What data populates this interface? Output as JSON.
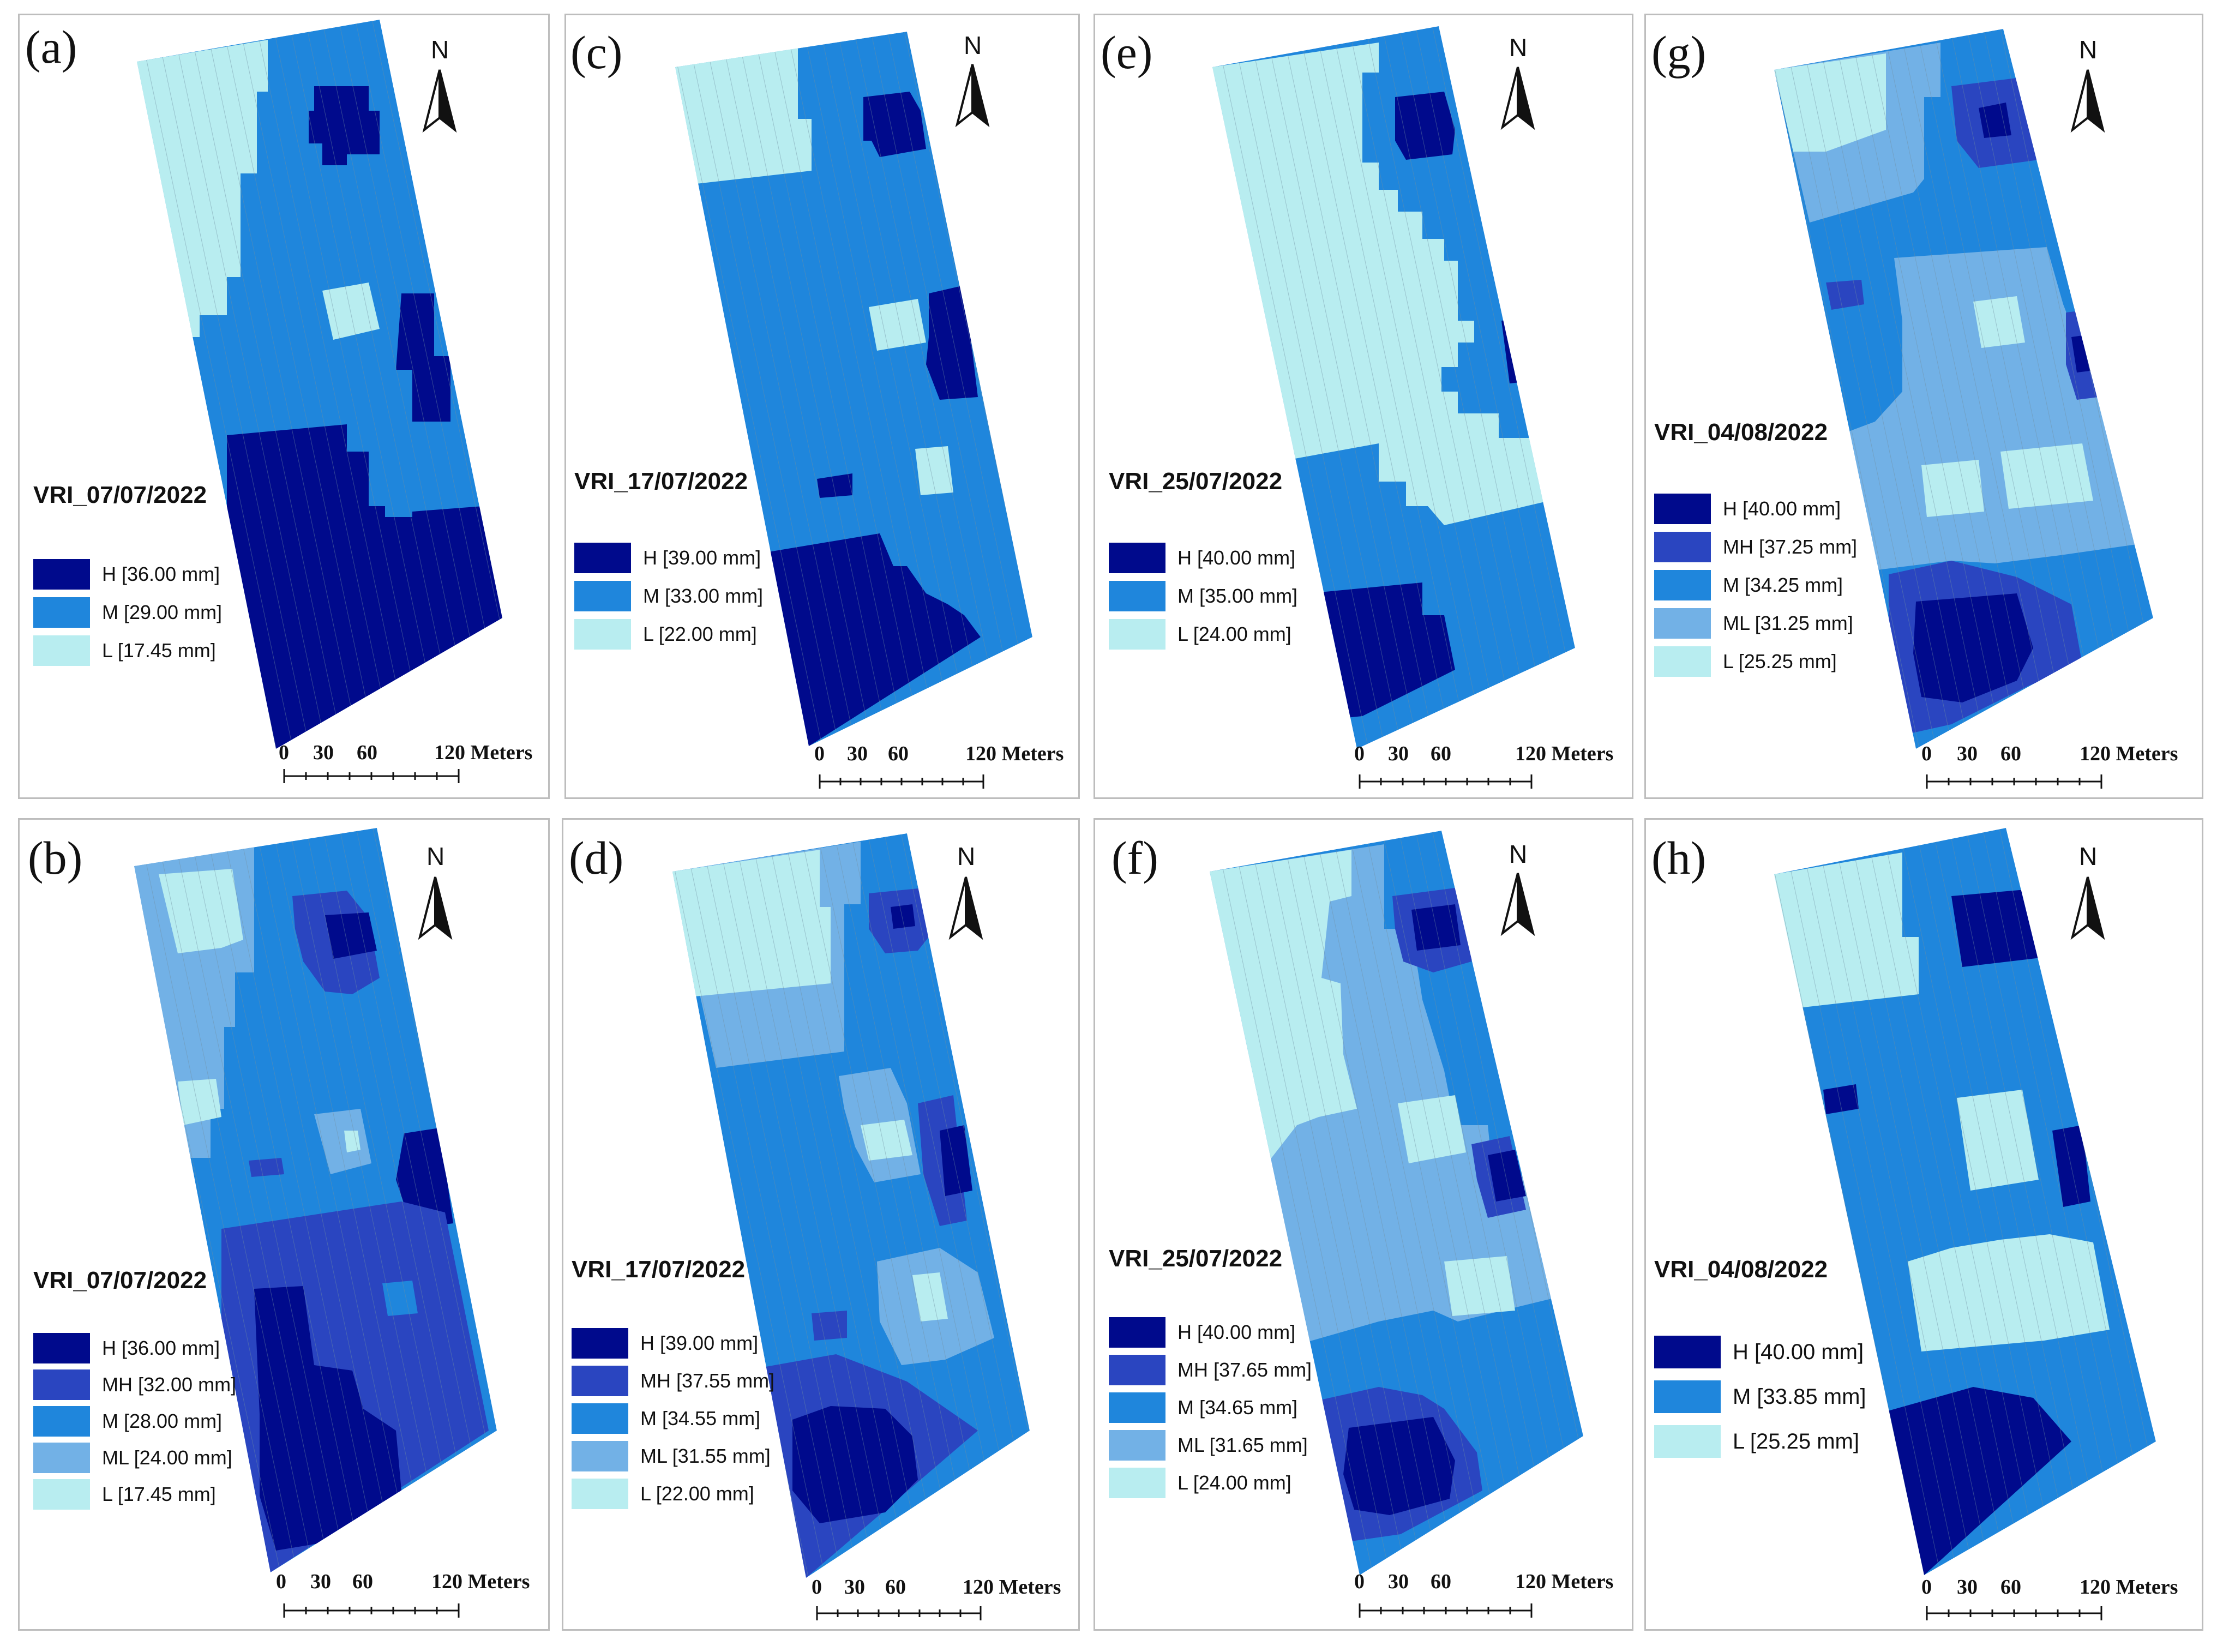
{
  "figure": {
    "north_symbol": "N",
    "scale_labels": [
      "0",
      "30",
      "60",
      "120 Meters"
    ],
    "panels": [
      {
        "id": "a",
        "label": "(a)",
        "title": "VRI_07/07/2022",
        "legend": [
          "H [36.00 mm]",
          "M [29.00 mm]",
          "L [17.45 mm]"
        ],
        "legend_colors": [
          "#000a8c",
          "#1f86dc",
          "#b8edf0"
        ]
      },
      {
        "id": "b",
        "label": "(b)",
        "title": "VRI_07/07/2022",
        "legend": [
          "H [36.00 mm]",
          "MH [32.00 mm]",
          "M [28.00 mm]",
          "ML [24.00 mm]",
          "L [17.45 mm]"
        ],
        "legend_colors": [
          "#000a8c",
          "#2a45c0",
          "#1f86dc",
          "#72b1e6",
          "#b8edf0"
        ]
      },
      {
        "id": "c",
        "label": "(c)",
        "title": "VRI_17/07/2022",
        "legend": [
          "H [39.00 mm]",
          "M [33.00 mm]",
          "L [22.00 mm]"
        ],
        "legend_colors": [
          "#000a8c",
          "#1f86dc",
          "#b8edf0"
        ]
      },
      {
        "id": "d",
        "label": "(d)",
        "title": "VRI_17/07/2022",
        "legend": [
          "H [39.00 mm]",
          "MH [37.55 mm]",
          "M [34.55 mm]",
          "ML [31.55 mm]",
          "L [22.00 mm]"
        ],
        "legend_colors": [
          "#000a8c",
          "#2a45c0",
          "#1f86dc",
          "#72b1e6",
          "#b8edf0"
        ]
      },
      {
        "id": "e",
        "label": "(e)",
        "title": "VRI_25/07/2022",
        "legend": [
          "H [40.00 mm]",
          "M [35.00 mm]",
          "L [24.00 mm]"
        ],
        "legend_colors": [
          "#000a8c",
          "#1f86dc",
          "#b8edf0"
        ]
      },
      {
        "id": "f",
        "label": "(f)",
        "title": "VRI_25/07/2022",
        "legend": [
          "H [40.00 mm]",
          "MH [37.65 mm]",
          "M [34.65 mm]",
          "ML [31.65 mm]",
          "L [24.00 mm]"
        ],
        "legend_colors": [
          "#000a8c",
          "#2a45c0",
          "#1f86dc",
          "#72b1e6",
          "#b8edf0"
        ]
      },
      {
        "id": "g",
        "label": "(g)",
        "title": "VRI_04/08/2022",
        "legend": [
          "H [40.00 mm]",
          "MH [37.25 mm]",
          "M [34.25 mm]",
          "ML [31.25 mm]",
          "L [25.25 mm]"
        ],
        "legend_colors": [
          "#000a8c",
          "#2a45c0",
          "#1f86dc",
          "#72b1e6",
          "#b8edf0"
        ]
      },
      {
        "id": "h",
        "label": "(h)",
        "title": "VRI_04/08/2022",
        "legend": [
          "H [40.00 mm]",
          "M [33.85 mm]",
          "L [25.25 mm]"
        ],
        "legend_colors": [
          "#000a8c",
          "#1f86dc",
          "#b8edf0"
        ]
      }
    ]
  }
}
